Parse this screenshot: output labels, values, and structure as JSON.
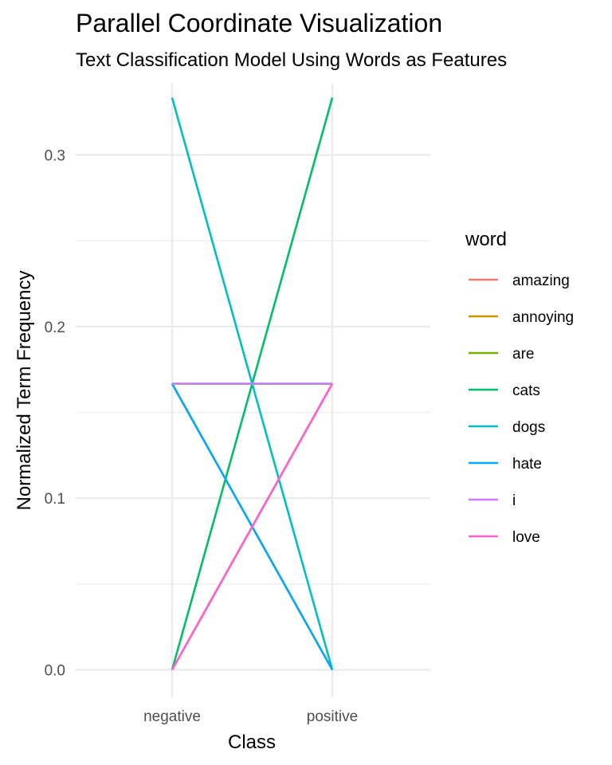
{
  "chart_data": {
    "type": "line",
    "subtype": "parallel-coordinates",
    "title": "Parallel Coordinate Visualization",
    "subtitle": "Text Classification Model Using Words as Features",
    "xlabel": "Class",
    "ylabel": "Normalized Term Frequency",
    "categories": [
      "negative",
      "positive"
    ],
    "ylim": [
      -0.016,
      0.3415
    ],
    "yticks": [
      0.0,
      0.1,
      0.2,
      0.3
    ],
    "ytick_labels": [
      "0.0",
      "0.1",
      "0.2",
      "0.3"
    ],
    "y_minor_ticks": [
      0.05,
      0.15,
      0.25
    ],
    "grid": true,
    "legend": {
      "title": "word",
      "placement": "right"
    },
    "series": [
      {
        "name": "amazing",
        "color": "#F8766D",
        "values": [
          0.0,
          0.1667
        ]
      },
      {
        "name": "annoying",
        "color": "#CD9600",
        "values": [
          0.1667,
          0.0
        ]
      },
      {
        "name": "are",
        "color": "#7CAE00",
        "values": [
          0.1667,
          0.1667
        ]
      },
      {
        "name": "cats",
        "color": "#00BE67",
        "values": [
          0.0,
          0.3333
        ]
      },
      {
        "name": "dogs",
        "color": "#00BFC4",
        "values": [
          0.3333,
          0.0
        ]
      },
      {
        "name": "hate",
        "color": "#00A9FF",
        "values": [
          0.1667,
          0.0
        ]
      },
      {
        "name": "i",
        "color": "#C77CFF",
        "values": [
          0.1667,
          0.1667
        ]
      },
      {
        "name": "love",
        "color": "#FF61CC",
        "values": [
          0.0,
          0.1667
        ]
      }
    ]
  }
}
